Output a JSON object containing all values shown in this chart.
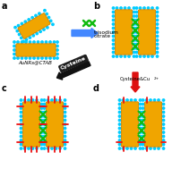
{
  "bg_color": "#ffffff",
  "gold_color": "#f0a500",
  "gold_edge": "#c07800",
  "ctab_color": "#00ccff",
  "cys_red": "#ee1111",
  "cit_green": "#11bb11",
  "label_a": "a",
  "label_b": "b",
  "label_c": "c",
  "label_d": "d",
  "text_aunr": "AuNRs@CTAB",
  "text_trisodium": "trisodium",
  "text_citrate": "citrate",
  "text_cysteine": "Cysteine",
  "text_cysteine_cu": "Cysteine&Cu",
  "arrow_blue": "#4488ff",
  "arrow_red": "#dd1111",
  "arrow_black": "#111111"
}
